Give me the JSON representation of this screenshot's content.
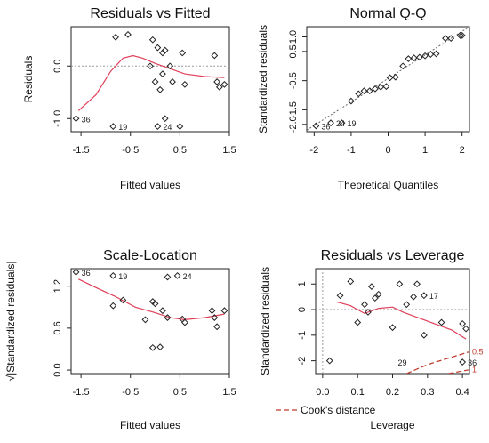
{
  "chart_data": [
    {
      "type": "scatter",
      "title": "Residuals vs Fitted",
      "xlabel": "Fitted values",
      "ylabel": "Residuals",
      "xlim": [
        -1.7,
        1.5
      ],
      "ylim": [
        -1.25,
        0.75
      ],
      "xticks": [
        -1.5,
        -0.5,
        0.5,
        1.5
      ],
      "xtick_labels": [
        "-1.5",
        "-0.5",
        "0.5",
        "1.5"
      ],
      "yticks": [
        -1.0,
        0.0
      ],
      "ytick_labels": [
        "-1.0",
        "0.0"
      ],
      "hline": 0,
      "points": [
        {
          "x": -1.6,
          "y": -1.0
        },
        {
          "x": -0.8,
          "y": 0.55
        },
        {
          "x": -0.55,
          "y": 0.6
        },
        {
          "x": -0.85,
          "y": -1.15
        },
        {
          "x": -0.05,
          "y": 0.5
        },
        {
          "x": 0.05,
          "y": 0.35
        },
        {
          "x": -0.1,
          "y": 0.0
        },
        {
          "x": 0.0,
          "y": -0.3
        },
        {
          "x": 0.1,
          "y": -0.45
        },
        {
          "x": 0.15,
          "y": 0.25
        },
        {
          "x": 0.2,
          "y": 0.3
        },
        {
          "x": 0.15,
          "y": -0.15
        },
        {
          "x": 0.2,
          "y": -1.0
        },
        {
          "x": 0.3,
          "y": 0.0
        },
        {
          "x": 0.35,
          "y": -0.3
        },
        {
          "x": 0.5,
          "y": -1.15
        },
        {
          "x": 0.55,
          "y": 0.25
        },
        {
          "x": 0.6,
          "y": -0.35
        },
        {
          "x": 1.2,
          "y": 0.2
        },
        {
          "x": 1.25,
          "y": -0.3
        },
        {
          "x": 1.3,
          "y": -0.4
        },
        {
          "x": 1.4,
          "y": -0.35
        },
        {
          "x": 0.05,
          "y": -1.15
        }
      ],
      "smooth": [
        [
          -1.55,
          -0.85
        ],
        [
          -1.2,
          -0.55
        ],
        [
          -0.9,
          -0.1
        ],
        [
          -0.65,
          0.15
        ],
        [
          -0.45,
          0.2
        ],
        [
          -0.25,
          0.15
        ],
        [
          0.0,
          0.05
        ],
        [
          0.3,
          -0.05
        ],
        [
          0.6,
          -0.15
        ],
        [
          1.0,
          -0.2
        ],
        [
          1.4,
          -0.22
        ]
      ],
      "annotations": [
        {
          "text": "36",
          "x": -1.6,
          "y": -1.0
        },
        {
          "text": "19",
          "x": -0.85,
          "y": -1.15
        },
        {
          "text": "24",
          "x": 0.05,
          "y": -1.15
        }
      ]
    },
    {
      "type": "scatter",
      "title": "Normal Q-Q",
      "xlabel": "Theoretical Quantiles",
      "ylabel": "Standardized residuals",
      "xlim": [
        -2.2,
        2.2
      ],
      "ylim": [
        -2.25,
        1.35
      ],
      "xticks": [
        -2,
        -1,
        0,
        1,
        2
      ],
      "xtick_labels": [
        "-2",
        "-1",
        "0",
        "1",
        "2"
      ],
      "yticks": [
        -2.0,
        -1.5,
        -0.5,
        0.5,
        1.0
      ],
      "ytick_labels": [
        "-2.0",
        "-1.5",
        "-0.5",
        "0.5",
        "1.0"
      ],
      "reference_line": [
        [
          -2.2,
          -2.2
        ],
        [
          2.2,
          1.35
        ]
      ],
      "points": [
        {
          "x": -1.95,
          "y": -2.05
        },
        {
          "x": -1.55,
          "y": -1.95
        },
        {
          "x": -1.25,
          "y": -1.95
        },
        {
          "x": -1.0,
          "y": -1.2
        },
        {
          "x": -0.8,
          "y": -0.95
        },
        {
          "x": -0.65,
          "y": -0.85
        },
        {
          "x": -0.5,
          "y": -0.85
        },
        {
          "x": -0.35,
          "y": -0.78
        },
        {
          "x": -0.2,
          "y": -0.72
        },
        {
          "x": -0.05,
          "y": -0.7
        },
        {
          "x": 0.05,
          "y": -0.4
        },
        {
          "x": 0.2,
          "y": -0.38
        },
        {
          "x": 0.4,
          "y": 0.0
        },
        {
          "x": 0.55,
          "y": 0.25
        },
        {
          "x": 0.7,
          "y": 0.28
        },
        {
          "x": 0.85,
          "y": 0.3
        },
        {
          "x": 1.0,
          "y": 0.35
        },
        {
          "x": 1.15,
          "y": 0.4
        },
        {
          "x": 1.3,
          "y": 0.42
        },
        {
          "x": 1.55,
          "y": 0.95
        },
        {
          "x": 1.7,
          "y": 0.95
        },
        {
          "x": 1.95,
          "y": 1.05
        },
        {
          "x": 2.0,
          "y": 1.05
        }
      ],
      "annotations": [
        {
          "text": "36",
          "x": -1.95,
          "y": -2.05
        },
        {
          "text": "24",
          "x": -1.55,
          "y": -1.95
        },
        {
          "text": "19",
          "x": -1.25,
          "y": -1.95
        }
      ]
    },
    {
      "type": "scatter",
      "title": "Scale-Location",
      "xlabel": "Fitted values",
      "ylabel": "√|Standardized residuals|",
      "xlim": [
        -1.7,
        1.5
      ],
      "ylim": [
        -0.05,
        1.45
      ],
      "xticks": [
        -1.5,
        -0.5,
        0.5,
        1.5
      ],
      "xtick_labels": [
        "-1.5",
        "-0.5",
        "0.5",
        "1.5"
      ],
      "yticks": [
        0.0,
        0.6,
        1.2
      ],
      "ytick_labels": [
        "0.0",
        "0.6",
        "1.2"
      ],
      "points": [
        {
          "x": -1.6,
          "y": 1.4
        },
        {
          "x": -0.85,
          "y": 1.35
        },
        {
          "x": -0.65,
          "y": 1.0
        },
        {
          "x": -0.85,
          "y": 0.92
        },
        {
          "x": -0.2,
          "y": 0.72
        },
        {
          "x": -0.05,
          "y": 0.98
        },
        {
          "x": 0.0,
          "y": 0.95
        },
        {
          "x": -0.05,
          "y": 0.32
        },
        {
          "x": 0.1,
          "y": 0.33
        },
        {
          "x": 0.15,
          "y": 0.85
        },
        {
          "x": 0.25,
          "y": 0.75
        },
        {
          "x": 0.25,
          "y": 1.33
        },
        {
          "x": 0.45,
          "y": 1.35
        },
        {
          "x": 0.55,
          "y": 0.73
        },
        {
          "x": 0.6,
          "y": 0.68
        },
        {
          "x": 1.15,
          "y": 0.85
        },
        {
          "x": 1.2,
          "y": 0.75
        },
        {
          "x": 1.25,
          "y": 0.62
        },
        {
          "x": 1.4,
          "y": 0.85
        }
      ],
      "smooth": [
        [
          -1.55,
          1.3
        ],
        [
          -1.2,
          1.18
        ],
        [
          -0.8,
          1.05
        ],
        [
          -0.4,
          0.9
        ],
        [
          0.0,
          0.82
        ],
        [
          0.3,
          0.75
        ],
        [
          0.6,
          0.72
        ],
        [
          1.0,
          0.75
        ],
        [
          1.4,
          0.8
        ]
      ],
      "annotations": [
        {
          "text": "36",
          "x": -1.6,
          "y": 1.4
        },
        {
          "text": "19",
          "x": -0.85,
          "y": 1.35
        },
        {
          "text": "24",
          "x": 0.45,
          "y": 1.35
        }
      ]
    },
    {
      "type": "scatter",
      "title": "Residuals vs Leverage",
      "xlabel": "Leverage",
      "ylabel": "Standardized residuals",
      "xlim": [
        -0.02,
        0.42
      ],
      "ylim": [
        -2.5,
        1.6
      ],
      "xticks": [
        0.0,
        0.1,
        0.2,
        0.3,
        0.4
      ],
      "xtick_labels": [
        "0.0",
        "0.1",
        "0.2",
        "0.3",
        "0.4"
      ],
      "yticks": [
        -2,
        -1,
        0,
        1
      ],
      "ytick_labels": [
        "-2",
        "-1",
        "0",
        "1"
      ],
      "hline": 0,
      "vline": 0,
      "points": [
        {
          "x": 0.02,
          "y": -2.0
        },
        {
          "x": 0.05,
          "y": 0.55
        },
        {
          "x": 0.08,
          "y": 1.1
        },
        {
          "x": 0.1,
          "y": -0.5
        },
        {
          "x": 0.12,
          "y": 0.2
        },
        {
          "x": 0.14,
          "y": 0.9
        },
        {
          "x": 0.15,
          "y": 0.45
        },
        {
          "x": 0.13,
          "y": -0.1
        },
        {
          "x": 0.16,
          "y": 0.6
        },
        {
          "x": 0.2,
          "y": -0.7
        },
        {
          "x": 0.22,
          "y": 1.0
        },
        {
          "x": 0.24,
          "y": 0.2
        },
        {
          "x": 0.26,
          "y": 0.5
        },
        {
          "x": 0.27,
          "y": 1.0
        },
        {
          "x": 0.29,
          "y": 0.55
        },
        {
          "x": 0.29,
          "y": -1.0
        },
        {
          "x": 0.34,
          "y": -0.5
        },
        {
          "x": 0.4,
          "y": -0.55
        },
        {
          "x": 0.41,
          "y": -0.75
        },
        {
          "x": 0.4,
          "y": -2.05
        }
      ],
      "smooth": [
        [
          0.04,
          0.3
        ],
        [
          0.08,
          0.15
        ],
        [
          0.12,
          -0.15
        ],
        [
          0.16,
          0.05
        ],
        [
          0.2,
          0.1
        ],
        [
          0.23,
          -0.1
        ],
        [
          0.27,
          -0.3
        ],
        [
          0.32,
          -0.55
        ],
        [
          0.37,
          -0.8
        ],
        [
          0.41,
          -1.15
        ]
      ],
      "cooks_curves": [
        {
          "label": "0.5",
          "points": [
            [
              0.24,
              -2.5
            ],
            [
              0.3,
              -2.15
            ],
            [
              0.36,
              -1.9
            ],
            [
              0.42,
              -1.65
            ]
          ]
        },
        {
          "label": "1",
          "points": [
            [
              0.36,
              -2.5
            ],
            [
              0.42,
              -2.35
            ]
          ]
        }
      ],
      "legend": {
        "label": "Cook's distance",
        "placement": "bottom-left"
      },
      "annotations": [
        {
          "text": "17",
          "x": 0.29,
          "y": 0.55
        },
        {
          "text": "29",
          "x": 0.2,
          "y": -2.05
        },
        {
          "text": "36",
          "x": 0.4,
          "y": -2.05
        }
      ]
    }
  ]
}
